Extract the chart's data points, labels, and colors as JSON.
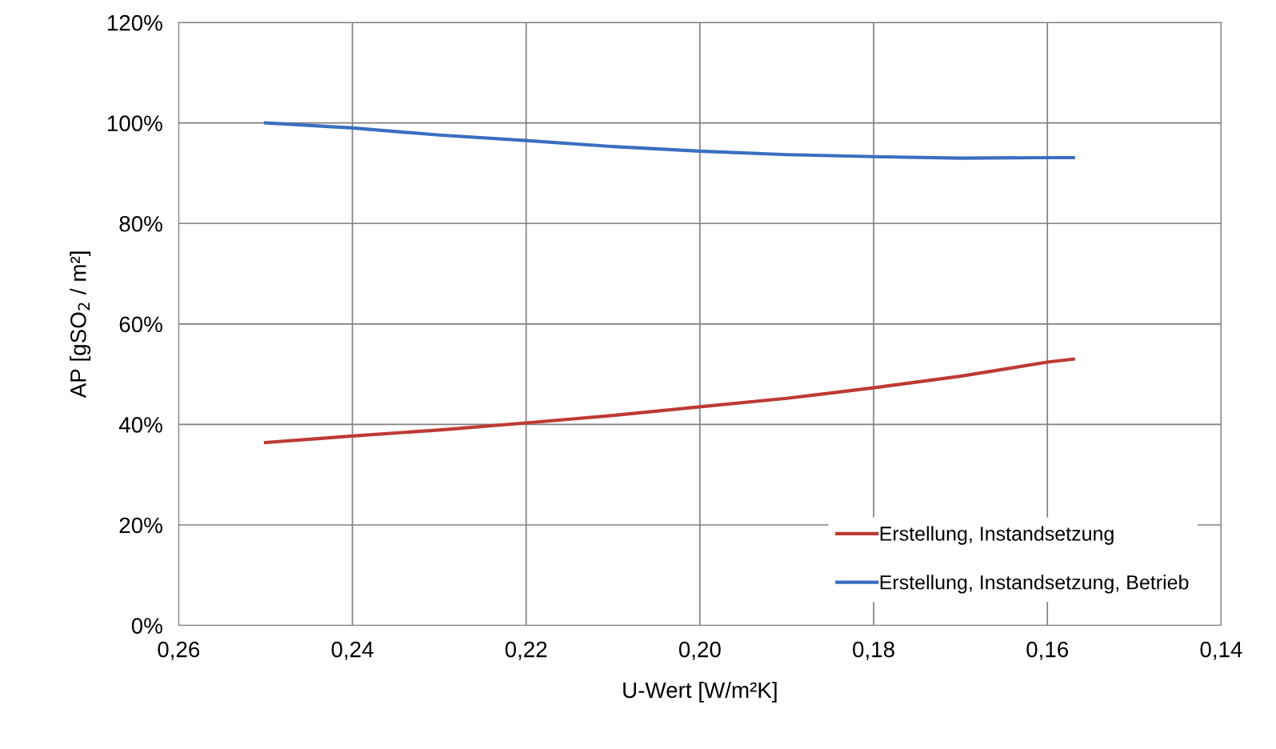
{
  "chart_data": {
    "type": "line",
    "xlabel": "U-Wert [W/m²K]",
    "ylabel": "AP [gSO$_{2}$ / m²]",
    "series": [
      {
        "name": "Erstellung, Instandsetzung",
        "color": "#be3a34",
        "x": [
          0.25,
          0.24,
          0.23,
          0.22,
          0.21,
          0.2,
          0.19,
          0.18,
          0.17,
          0.16,
          0.157
        ],
        "values": [
          36.4,
          37.7,
          38.9,
          40.3,
          41.8,
          43.5,
          45.2,
          47.3,
          49.6,
          52.4,
          53.0
        ]
      },
      {
        "name": "Erstellung, Instandsetzung, Betrieb",
        "color": "#3a6fc0",
        "x": [
          0.25,
          0.24,
          0.23,
          0.22,
          0.21,
          0.2,
          0.19,
          0.18,
          0.17,
          0.16,
          0.157
        ],
        "values": [
          100,
          99.0,
          97.6,
          96.5,
          95.3,
          94.4,
          93.7,
          93.3,
          93.0,
          93.1,
          93.1
        ]
      }
    ],
    "xlim": [
      0.26,
      0.14
    ],
    "xticks": [
      {
        "value": 0.26,
        "label": "0,26"
      },
      {
        "value": 0.24,
        "label": "0,24"
      },
      {
        "value": 0.22,
        "label": "0,22"
      },
      {
        "value": 0.2,
        "label": "0,20"
      },
      {
        "value": 0.18,
        "label": "0,18"
      },
      {
        "value": 0.16,
        "label": "0,16"
      },
      {
        "value": 0.14,
        "label": "0,14"
      }
    ],
    "ylim": [
      0,
      120
    ],
    "yticks": [
      {
        "value": 0,
        "label": "0%"
      },
      {
        "value": 20,
        "label": "20%"
      },
      {
        "value": 40,
        "label": "40%"
      },
      {
        "value": 60,
        "label": "60%"
      },
      {
        "value": 80,
        "label": "80%"
      },
      {
        "value": 100,
        "label": "100%"
      },
      {
        "value": 120,
        "label": "120%"
      }
    ],
    "grid": true,
    "legend": "bottom right",
    "line_style": "solid",
    "marker": "none"
  }
}
